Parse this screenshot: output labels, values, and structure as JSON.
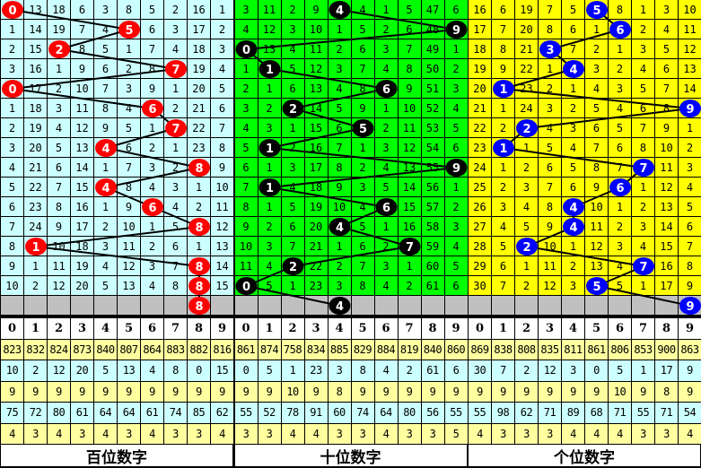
{
  "digit_headers": [
    "0",
    "1",
    "2",
    "3",
    "4",
    "5",
    "6",
    "7",
    "8",
    "9"
  ],
  "sections": [
    {
      "title": "百位数字",
      "colors": {
        "background": "#ccffff",
        "ball": "#ff0000"
      },
      "rows": [
        [
          "0",
          "13",
          "18",
          "6",
          "3",
          "8",
          "5",
          "2",
          "16",
          "1"
        ],
        [
          "1",
          "14",
          "19",
          "7",
          "4",
          "5",
          "6",
          "3",
          "17",
          "2"
        ],
        [
          "2",
          "15",
          "2",
          "8",
          "5",
          "1",
          "7",
          "4",
          "18",
          "3"
        ],
        [
          "3",
          "16",
          "1",
          "9",
          "6",
          "2",
          "8",
          "7",
          "19",
          "4"
        ],
        [
          "0",
          "17",
          "2",
          "10",
          "7",
          "3",
          "9",
          "1",
          "20",
          "5"
        ],
        [
          "1",
          "18",
          "3",
          "11",
          "8",
          "4",
          "6",
          "2",
          "21",
          "6"
        ],
        [
          "2",
          "19",
          "4",
          "12",
          "9",
          "5",
          "1",
          "7",
          "22",
          "7"
        ],
        [
          "3",
          "20",
          "5",
          "13",
          "4",
          "6",
          "2",
          "1",
          "23",
          "8"
        ],
        [
          "4",
          "21",
          "6",
          "14",
          "1",
          "7",
          "3",
          "2",
          "8",
          "9"
        ],
        [
          "5",
          "22",
          "7",
          "15",
          "4",
          "8",
          "4",
          "3",
          "1",
          "10"
        ],
        [
          "6",
          "23",
          "8",
          "16",
          "1",
          "9",
          "6",
          "4",
          "2",
          "11"
        ],
        [
          "7",
          "24",
          "9",
          "17",
          "2",
          "10",
          "1",
          "5",
          "8",
          "12"
        ],
        [
          "8",
          "1",
          "10",
          "18",
          "3",
          "11",
          "2",
          "6",
          "1",
          "13"
        ],
        [
          "9",
          "1",
          "11",
          "19",
          "4",
          "12",
          "3",
          "7",
          "8",
          "14"
        ],
        [
          "10",
          "2",
          "12",
          "20",
          "5",
          "13",
          "4",
          "8",
          "8",
          "15"
        ]
      ],
      "hits": [
        0,
        5,
        2,
        7,
        0,
        6,
        7,
        4,
        8,
        4,
        6,
        8,
        1,
        8,
        8
      ],
      "next_hit": 8,
      "stats": [
        [
          "823",
          "832",
          "824",
          "873",
          "840",
          "807",
          "864",
          "883",
          "882",
          "816"
        ],
        [
          "10",
          "2",
          "12",
          "20",
          "5",
          "13",
          "4",
          "8",
          "0",
          "15"
        ],
        [
          "9",
          "9",
          "9",
          "9",
          "9",
          "9",
          "9",
          "9",
          "9",
          "9"
        ],
        [
          "75",
          "72",
          "80",
          "61",
          "64",
          "64",
          "61",
          "74",
          "85",
          "62"
        ],
        [
          "4",
          "3",
          "4",
          "3",
          "4",
          "3",
          "4",
          "3",
          "3",
          "4"
        ]
      ]
    },
    {
      "title": "十位数字",
      "colors": {
        "background": "#00ff00",
        "ball": "#000000"
      },
      "rows": [
        [
          "3",
          "11",
          "2",
          "9",
          "4",
          "4",
          "1",
          "5",
          "47",
          "6"
        ],
        [
          "4",
          "12",
          "3",
          "10",
          "1",
          "5",
          "2",
          "6",
          "48",
          "9"
        ],
        [
          "0",
          "13",
          "4",
          "11",
          "2",
          "6",
          "3",
          "7",
          "49",
          "1"
        ],
        [
          "1",
          "1",
          "5",
          "12",
          "3",
          "7",
          "4",
          "8",
          "50",
          "2"
        ],
        [
          "2",
          "1",
          "6",
          "13",
          "4",
          "8",
          "6",
          "9",
          "51",
          "3"
        ],
        [
          "3",
          "2",
          "2",
          "14",
          "5",
          "9",
          "1",
          "10",
          "52",
          "4"
        ],
        [
          "4",
          "3",
          "1",
          "15",
          "6",
          "5",
          "2",
          "11",
          "53",
          "5"
        ],
        [
          "5",
          "1",
          "2",
          "16",
          "7",
          "1",
          "3",
          "12",
          "54",
          "6"
        ],
        [
          "6",
          "1",
          "3",
          "17",
          "8",
          "2",
          "4",
          "13",
          "55",
          "9"
        ],
        [
          "7",
          "1",
          "4",
          "18",
          "9",
          "3",
          "5",
          "14",
          "56",
          "1"
        ],
        [
          "8",
          "1",
          "5",
          "19",
          "10",
          "4",
          "6",
          "15",
          "57",
          "2"
        ],
        [
          "9",
          "2",
          "6",
          "20",
          "4",
          "5",
          "1",
          "16",
          "58",
          "3"
        ],
        [
          "10",
          "3",
          "7",
          "21",
          "1",
          "6",
          "2",
          "7",
          "59",
          "4"
        ],
        [
          "11",
          "4",
          "2",
          "22",
          "2",
          "7",
          "3",
          "1",
          "60",
          "5"
        ],
        [
          "0",
          "5",
          "1",
          "23",
          "3",
          "8",
          "4",
          "2",
          "61",
          "6"
        ]
      ],
      "hits": [
        4,
        9,
        0,
        1,
        6,
        2,
        5,
        1,
        9,
        1,
        6,
        4,
        7,
        2,
        0
      ],
      "next_hit": 4,
      "stats": [
        [
          "861",
          "874",
          "758",
          "834",
          "885",
          "829",
          "884",
          "819",
          "840",
          "860"
        ],
        [
          "0",
          "5",
          "1",
          "23",
          "3",
          "8",
          "4",
          "2",
          "61",
          "6"
        ],
        [
          "9",
          "9",
          "10",
          "9",
          "8",
          "9",
          "9",
          "9",
          "9",
          "9"
        ],
        [
          "55",
          "52",
          "78",
          "91",
          "60",
          "74",
          "64",
          "80",
          "56",
          "55"
        ],
        [
          "3",
          "3",
          "4",
          "4",
          "3",
          "3",
          "4",
          "3",
          "3",
          "5"
        ]
      ]
    },
    {
      "title": "个位数字",
      "colors": {
        "background": "#ffff00",
        "ball": "#0000ff"
      },
      "rows": [
        [
          "16",
          "6",
          "19",
          "7",
          "5",
          "5",
          "8",
          "1",
          "3",
          "10"
        ],
        [
          "17",
          "7",
          "20",
          "8",
          "6",
          "1",
          "6",
          "2",
          "4",
          "11"
        ],
        [
          "18",
          "8",
          "21",
          "3",
          "7",
          "2",
          "1",
          "3",
          "5",
          "12"
        ],
        [
          "19",
          "9",
          "22",
          "1",
          "4",
          "3",
          "2",
          "4",
          "6",
          "13"
        ],
        [
          "20",
          "1",
          "23",
          "2",
          "1",
          "4",
          "3",
          "5",
          "7",
          "14"
        ],
        [
          "21",
          "1",
          "24",
          "3",
          "2",
          "5",
          "4",
          "6",
          "8",
          "9"
        ],
        [
          "22",
          "2",
          "2",
          "4",
          "3",
          "6",
          "5",
          "7",
          "9",
          "1"
        ],
        [
          "23",
          "1",
          "1",
          "5",
          "4",
          "7",
          "6",
          "8",
          "10",
          "2"
        ],
        [
          "24",
          "1",
          "2",
          "6",
          "5",
          "8",
          "7",
          "7",
          "11",
          "3"
        ],
        [
          "25",
          "2",
          "3",
          "7",
          "6",
          "9",
          "6",
          "1",
          "12",
          "4"
        ],
        [
          "26",
          "3",
          "4",
          "8",
          "4",
          "10",
          "1",
          "2",
          "13",
          "5"
        ],
        [
          "27",
          "4",
          "5",
          "9",
          "4",
          "11",
          "2",
          "3",
          "14",
          "6"
        ],
        [
          "28",
          "5",
          "2",
          "10",
          "1",
          "12",
          "3",
          "4",
          "15",
          "7"
        ],
        [
          "29",
          "6",
          "1",
          "11",
          "2",
          "13",
          "4",
          "7",
          "16",
          "8"
        ],
        [
          "30",
          "7",
          "2",
          "12",
          "3",
          "5",
          "5",
          "1",
          "17",
          "9"
        ]
      ],
      "hits": [
        5,
        6,
        3,
        4,
        1,
        9,
        2,
        1,
        7,
        6,
        4,
        4,
        2,
        7,
        5
      ],
      "next_hit": 9,
      "stats": [
        [
          "869",
          "838",
          "808",
          "835",
          "811",
          "861",
          "806",
          "853",
          "900",
          "863"
        ],
        [
          "30",
          "7",
          "2",
          "12",
          "3",
          "0",
          "5",
          "1",
          "17",
          "9"
        ],
        [
          "9",
          "9",
          "9",
          "9",
          "9",
          "9",
          "10",
          "9",
          "8",
          "9"
        ],
        [
          "55",
          "98",
          "62",
          "71",
          "89",
          "68",
          "71",
          "55",
          "71",
          "54"
        ],
        [
          "4",
          "3",
          "3",
          "3",
          "4",
          "4",
          "4",
          "3",
          "3",
          "4"
        ]
      ]
    }
  ],
  "stat_row_colors": [
    "#ffffa0",
    "#ccffff",
    "#ffffa0",
    "#ccffff",
    "#ffffa0"
  ],
  "placeholder_color": "#c0c0c0"
}
